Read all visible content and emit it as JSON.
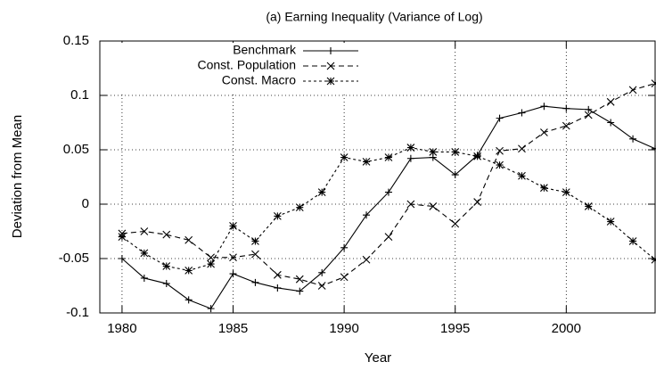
{
  "chart_data": {
    "type": "line",
    "title": "(a) Earning Inequality (Variance of Log)",
    "x_label": "Year",
    "y_label": "Deviation from Mean",
    "x": [
      1980,
      1981,
      1982,
      1983,
      1984,
      1985,
      1986,
      1987,
      1988,
      1989,
      1990,
      1991,
      1992,
      1993,
      1994,
      1995,
      1996,
      1997,
      1998,
      1999,
      2000,
      2001,
      2002,
      2003,
      2004
    ],
    "series": [
      {
        "name": "Benchmark",
        "color": "#000000",
        "dash": "solid",
        "marker": "plus",
        "values": [
          -0.05,
          -0.068,
          -0.073,
          -0.088,
          -0.096,
          -0.064,
          -0.072,
          -0.077,
          -0.08,
          -0.063,
          -0.04,
          -0.01,
          0.011,
          0.042,
          0.043,
          0.027,
          0.045,
          0.079,
          0.084,
          0.09,
          0.088,
          0.087,
          0.075,
          0.06,
          0.051
        ]
      },
      {
        "name": "Const. Population",
        "color": "#000000",
        "dash": "dashed",
        "marker": "cross",
        "values": [
          -0.027,
          -0.025,
          -0.028,
          -0.033,
          -0.049,
          -0.049,
          -0.046,
          -0.065,
          -0.069,
          -0.075,
          -0.067,
          -0.051,
          -0.03,
          0.0,
          -0.002,
          -0.018,
          0.002,
          0.049,
          0.051,
          0.066,
          0.072,
          0.082,
          0.094,
          0.105,
          0.111
        ]
      },
      {
        "name": "Const. Macro",
        "color": "#000000",
        "dash": "dotted",
        "marker": "star",
        "values": [
          -0.03,
          -0.045,
          -0.057,
          -0.061,
          -0.055,
          -0.02,
          -0.034,
          -0.011,
          -0.003,
          0.011,
          0.043,
          0.039,
          0.043,
          0.052,
          0.048,
          0.048,
          0.044,
          0.036,
          0.026,
          0.015,
          0.011,
          -0.002,
          -0.016,
          -0.034,
          -0.051
        ]
      }
    ],
    "xlim": [
      1979,
      2004
    ],
    "xticks": [
      1980,
      1985,
      1990,
      1995,
      2000
    ],
    "ylim": [
      -0.1,
      0.15
    ],
    "yticks": [
      -0.1,
      -0.05,
      0,
      0.05,
      0.1,
      0.15
    ],
    "grid": true,
    "legend": "top-left"
  }
}
